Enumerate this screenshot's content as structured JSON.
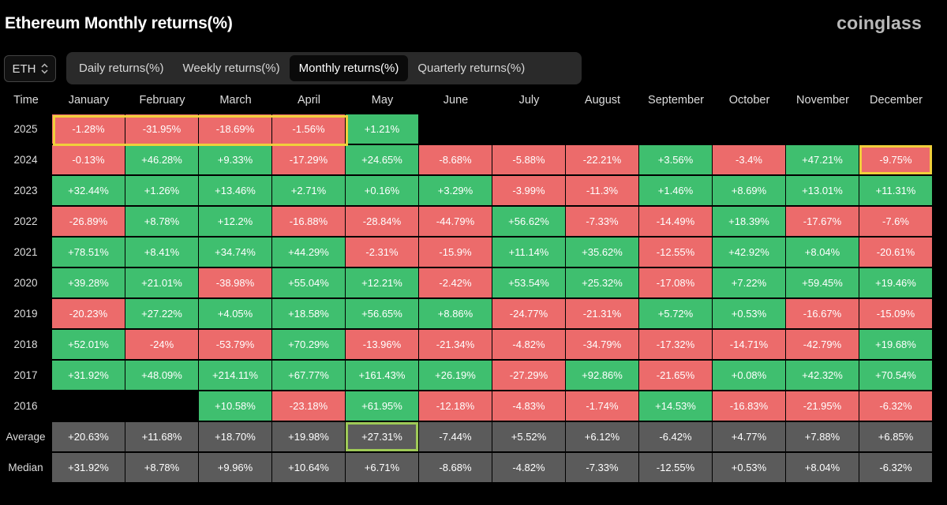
{
  "title": "Ethereum Monthly returns(%)",
  "brand": "coinglass",
  "coin_select": {
    "value": "ETH"
  },
  "tabs": [
    {
      "label": "Daily returns(%)",
      "active": false
    },
    {
      "label": "Weekly returns(%)",
      "active": false
    },
    {
      "label": "Monthly returns(%)",
      "active": true
    },
    {
      "label": "Quarterly returns(%)",
      "active": false
    }
  ],
  "colors": {
    "positive": "#3fbf6f",
    "negative": "#ec6b6b",
    "summary": "#5b5b5b",
    "highlight_yellow": "#f0cf3b",
    "highlight_green": "#9ec957"
  },
  "table": {
    "headers": [
      "Time",
      "January",
      "February",
      "March",
      "April",
      "May",
      "June",
      "July",
      "August",
      "September",
      "October",
      "November",
      "December"
    ],
    "rows": [
      {
        "year": "2025",
        "values": [
          "-1.28%",
          "-31.95%",
          "-18.69%",
          "-1.56%",
          "+1.21%",
          "",
          "",
          "",
          "",
          "",
          "",
          ""
        ]
      },
      {
        "year": "2024",
        "values": [
          "-0.13%",
          "+46.28%",
          "+9.33%",
          "-17.29%",
          "+24.65%",
          "-8.68%",
          "-5.88%",
          "-22.21%",
          "+3.56%",
          "-3.4%",
          "+47.21%",
          "-9.75%"
        ]
      },
      {
        "year": "2023",
        "values": [
          "+32.44%",
          "+1.26%",
          "+13.46%",
          "+2.71%",
          "+0.16%",
          "+3.29%",
          "-3.99%",
          "-11.3%",
          "+1.46%",
          "+8.69%",
          "+13.01%",
          "+11.31%"
        ]
      },
      {
        "year": "2022",
        "values": [
          "-26.89%",
          "+8.78%",
          "+12.2%",
          "-16.88%",
          "-28.84%",
          "-44.79%",
          "+56.62%",
          "-7.33%",
          "-14.49%",
          "+18.39%",
          "-17.67%",
          "-7.6%"
        ]
      },
      {
        "year": "2021",
        "values": [
          "+78.51%",
          "+8.41%",
          "+34.74%",
          "+44.29%",
          "-2.31%",
          "-15.9%",
          "+11.14%",
          "+35.62%",
          "-12.55%",
          "+42.92%",
          "+8.04%",
          "-20.61%"
        ]
      },
      {
        "year": "2020",
        "values": [
          "+39.28%",
          "+21.01%",
          "-38.98%",
          "+55.04%",
          "+12.21%",
          "-2.42%",
          "+53.54%",
          "+25.32%",
          "-17.08%",
          "+7.22%",
          "+59.45%",
          "+19.46%"
        ]
      },
      {
        "year": "2019",
        "values": [
          "-20.23%",
          "+27.22%",
          "+4.05%",
          "+18.58%",
          "+56.65%",
          "+8.86%",
          "-24.77%",
          "-21.31%",
          "+5.72%",
          "+0.53%",
          "-16.67%",
          "-15.09%"
        ]
      },
      {
        "year": "2018",
        "values": [
          "+52.01%",
          "-24%",
          "-53.79%",
          "+70.29%",
          "-13.96%",
          "-21.34%",
          "-4.82%",
          "-34.79%",
          "-17.32%",
          "-14.71%",
          "-42.79%",
          "+19.68%"
        ]
      },
      {
        "year": "2017",
        "values": [
          "+31.92%",
          "+48.09%",
          "+214.11%",
          "+67.77%",
          "+161.43%",
          "+26.19%",
          "-27.29%",
          "+92.86%",
          "-21.65%",
          "+0.08%",
          "+42.32%",
          "+70.54%"
        ]
      },
      {
        "year": "2016",
        "values": [
          "",
          "",
          "+10.58%",
          "-23.18%",
          "+61.95%",
          "-12.18%",
          "-4.83%",
          "-1.74%",
          "+14.53%",
          "-16.83%",
          "-21.95%",
          "-6.32%"
        ]
      }
    ],
    "summary": [
      {
        "label": "Average",
        "values": [
          "+20.63%",
          "+11.68%",
          "+18.70%",
          "+19.98%",
          "+27.31%",
          "-7.44%",
          "+5.52%",
          "+6.12%",
          "-6.42%",
          "+4.77%",
          "+7.88%",
          "+6.85%"
        ]
      },
      {
        "label": "Median",
        "values": [
          "+31.92%",
          "+8.78%",
          "+9.96%",
          "+10.64%",
          "+6.71%",
          "-8.68%",
          "-4.82%",
          "-7.33%",
          "-12.55%",
          "+0.53%",
          "+8.04%",
          "-6.32%"
        ]
      }
    ]
  }
}
